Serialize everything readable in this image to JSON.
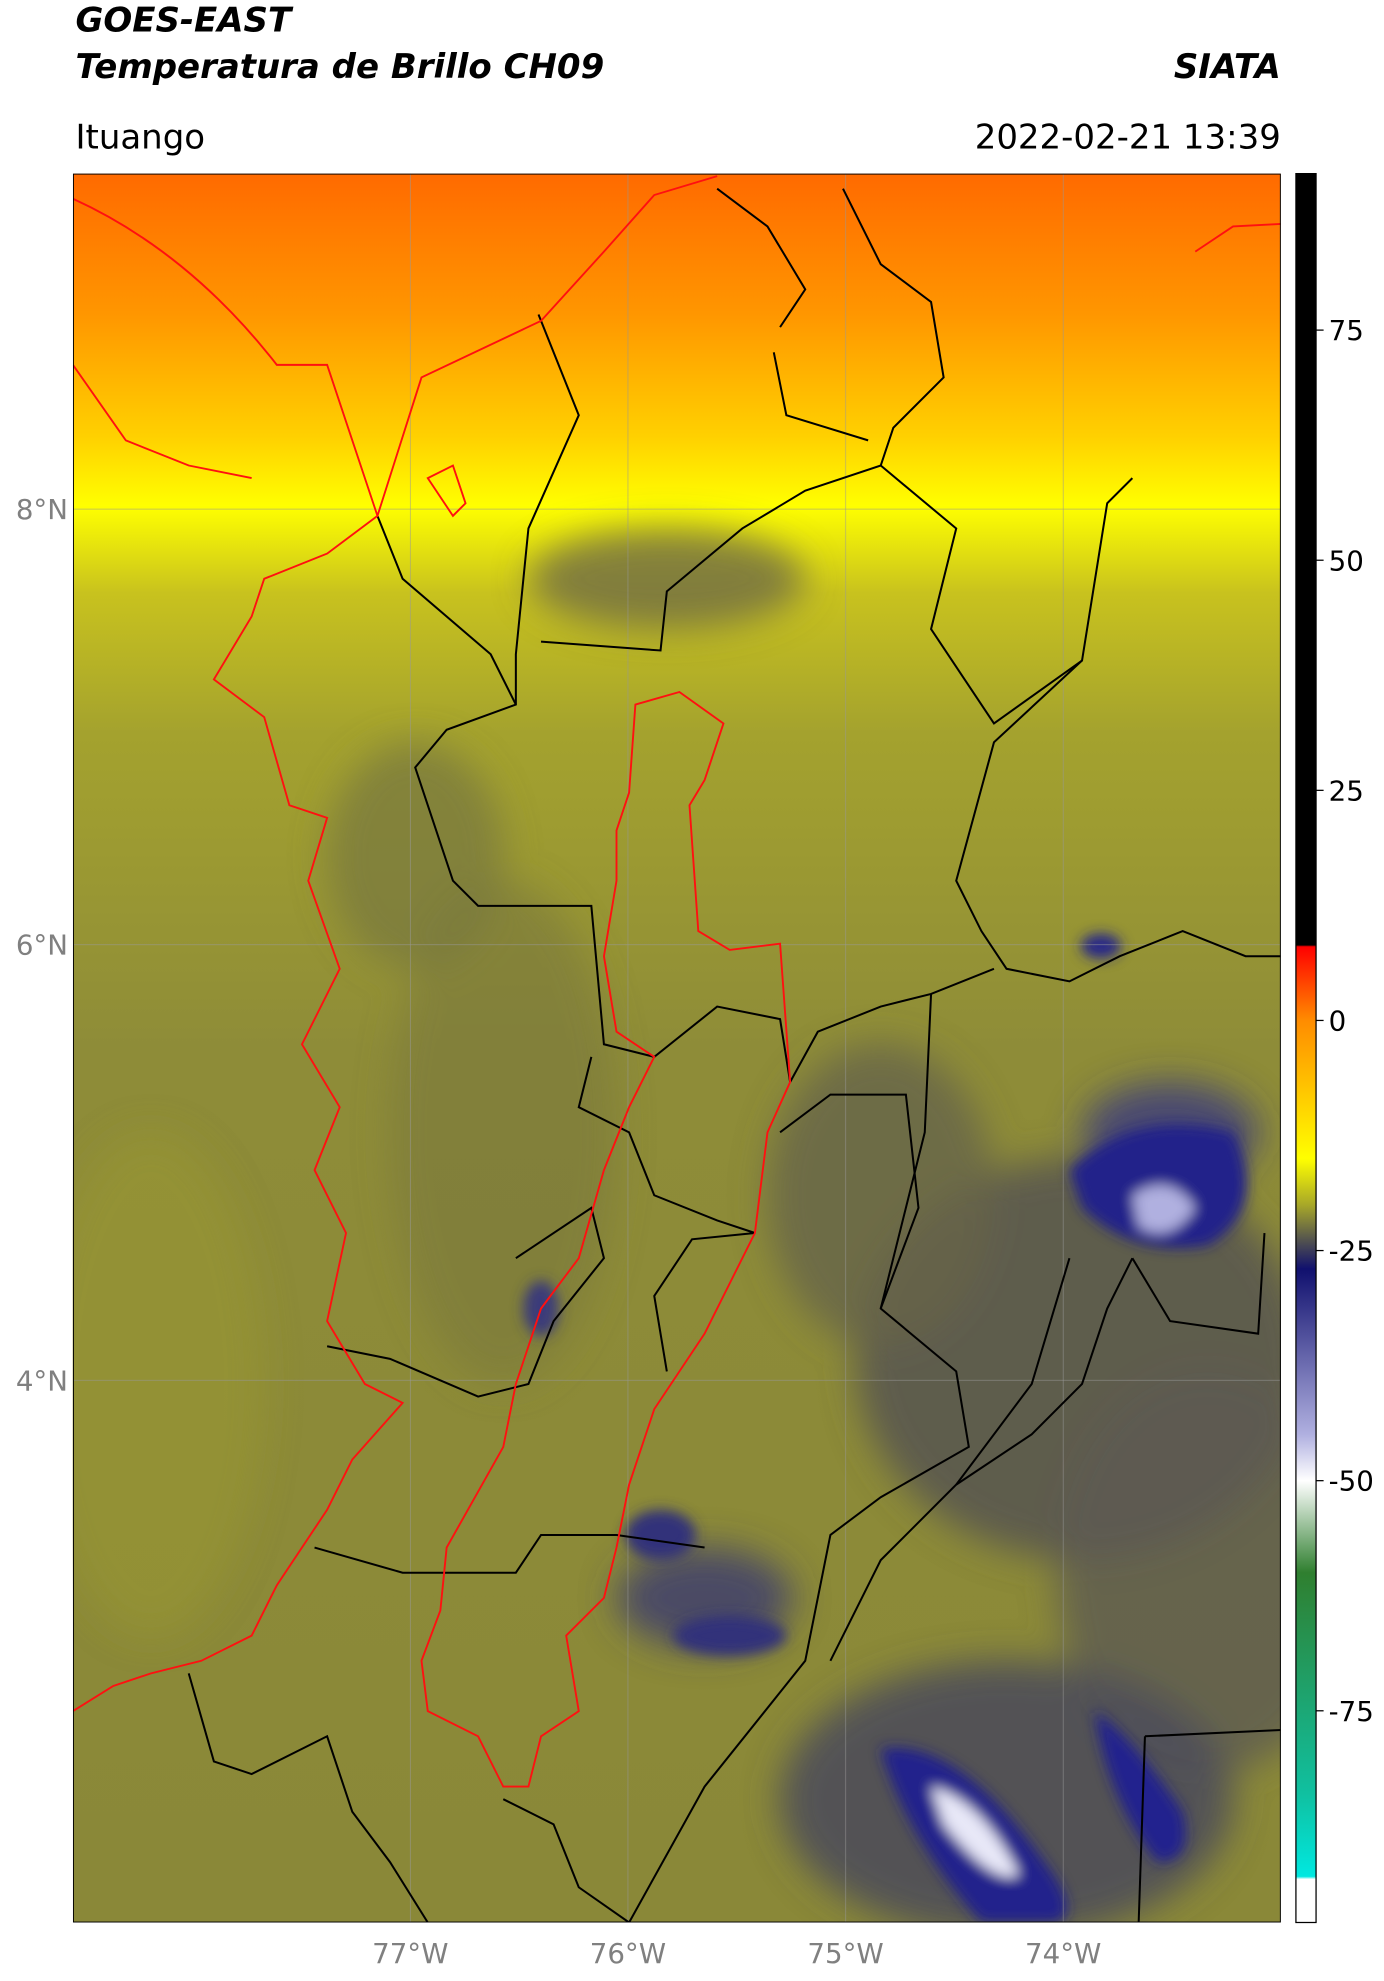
{
  "header": {
    "title": "GOES-EAST",
    "subtitle": "Temperatura de Brillo CH09",
    "agency": "SIATA",
    "location": "Ituango",
    "timestamp": "2022-02-21 13:39"
  },
  "map": {
    "lonlim": [
      -78.55,
      -73.0
    ],
    "latlim": [
      1.51,
      9.54
    ],
    "lonticks": [
      {
        "value": -77,
        "label": "77°W"
      },
      {
        "value": -76,
        "label": "76°W"
      },
      {
        "value": -75,
        "label": "75°W"
      },
      {
        "value": -74,
        "label": "74°W"
      }
    ],
    "latticks": [
      {
        "value": 8,
        "label": "8°N"
      },
      {
        "value": 6,
        "label": "6°N"
      },
      {
        "value": 4,
        "label": "4°N"
      }
    ],
    "grid": true
  },
  "colorbar": {
    "clim": [
      -98,
      92
    ],
    "ticks": [
      75,
      50,
      25,
      0,
      -25,
      -50,
      -75
    ],
    "stops": [
      {
        "value": 92,
        "color": "#000000"
      },
      {
        "value": 8.2,
        "color": "#000000"
      },
      {
        "value": 8,
        "color": "#ff0000"
      },
      {
        "value": 0,
        "color": "#ff8c00"
      },
      {
        "value": -15,
        "color": "#ffff00"
      },
      {
        "value": -20,
        "color": "#a8a828"
      },
      {
        "value": -24,
        "color": "#505050"
      },
      {
        "value": -27,
        "color": "#10106e"
      },
      {
        "value": -45,
        "color": "#b0b0e0"
      },
      {
        "value": -50,
        "color": "#ffffff"
      },
      {
        "value": -60,
        "color": "#2f7f2f"
      },
      {
        "value": -84,
        "color": "#10c0a0"
      },
      {
        "value": -93,
        "color": "#00e8e0"
      },
      {
        "value": -93.3,
        "color": "#ffffff"
      },
      {
        "value": -98,
        "color": "#ffffff"
      }
    ]
  }
}
